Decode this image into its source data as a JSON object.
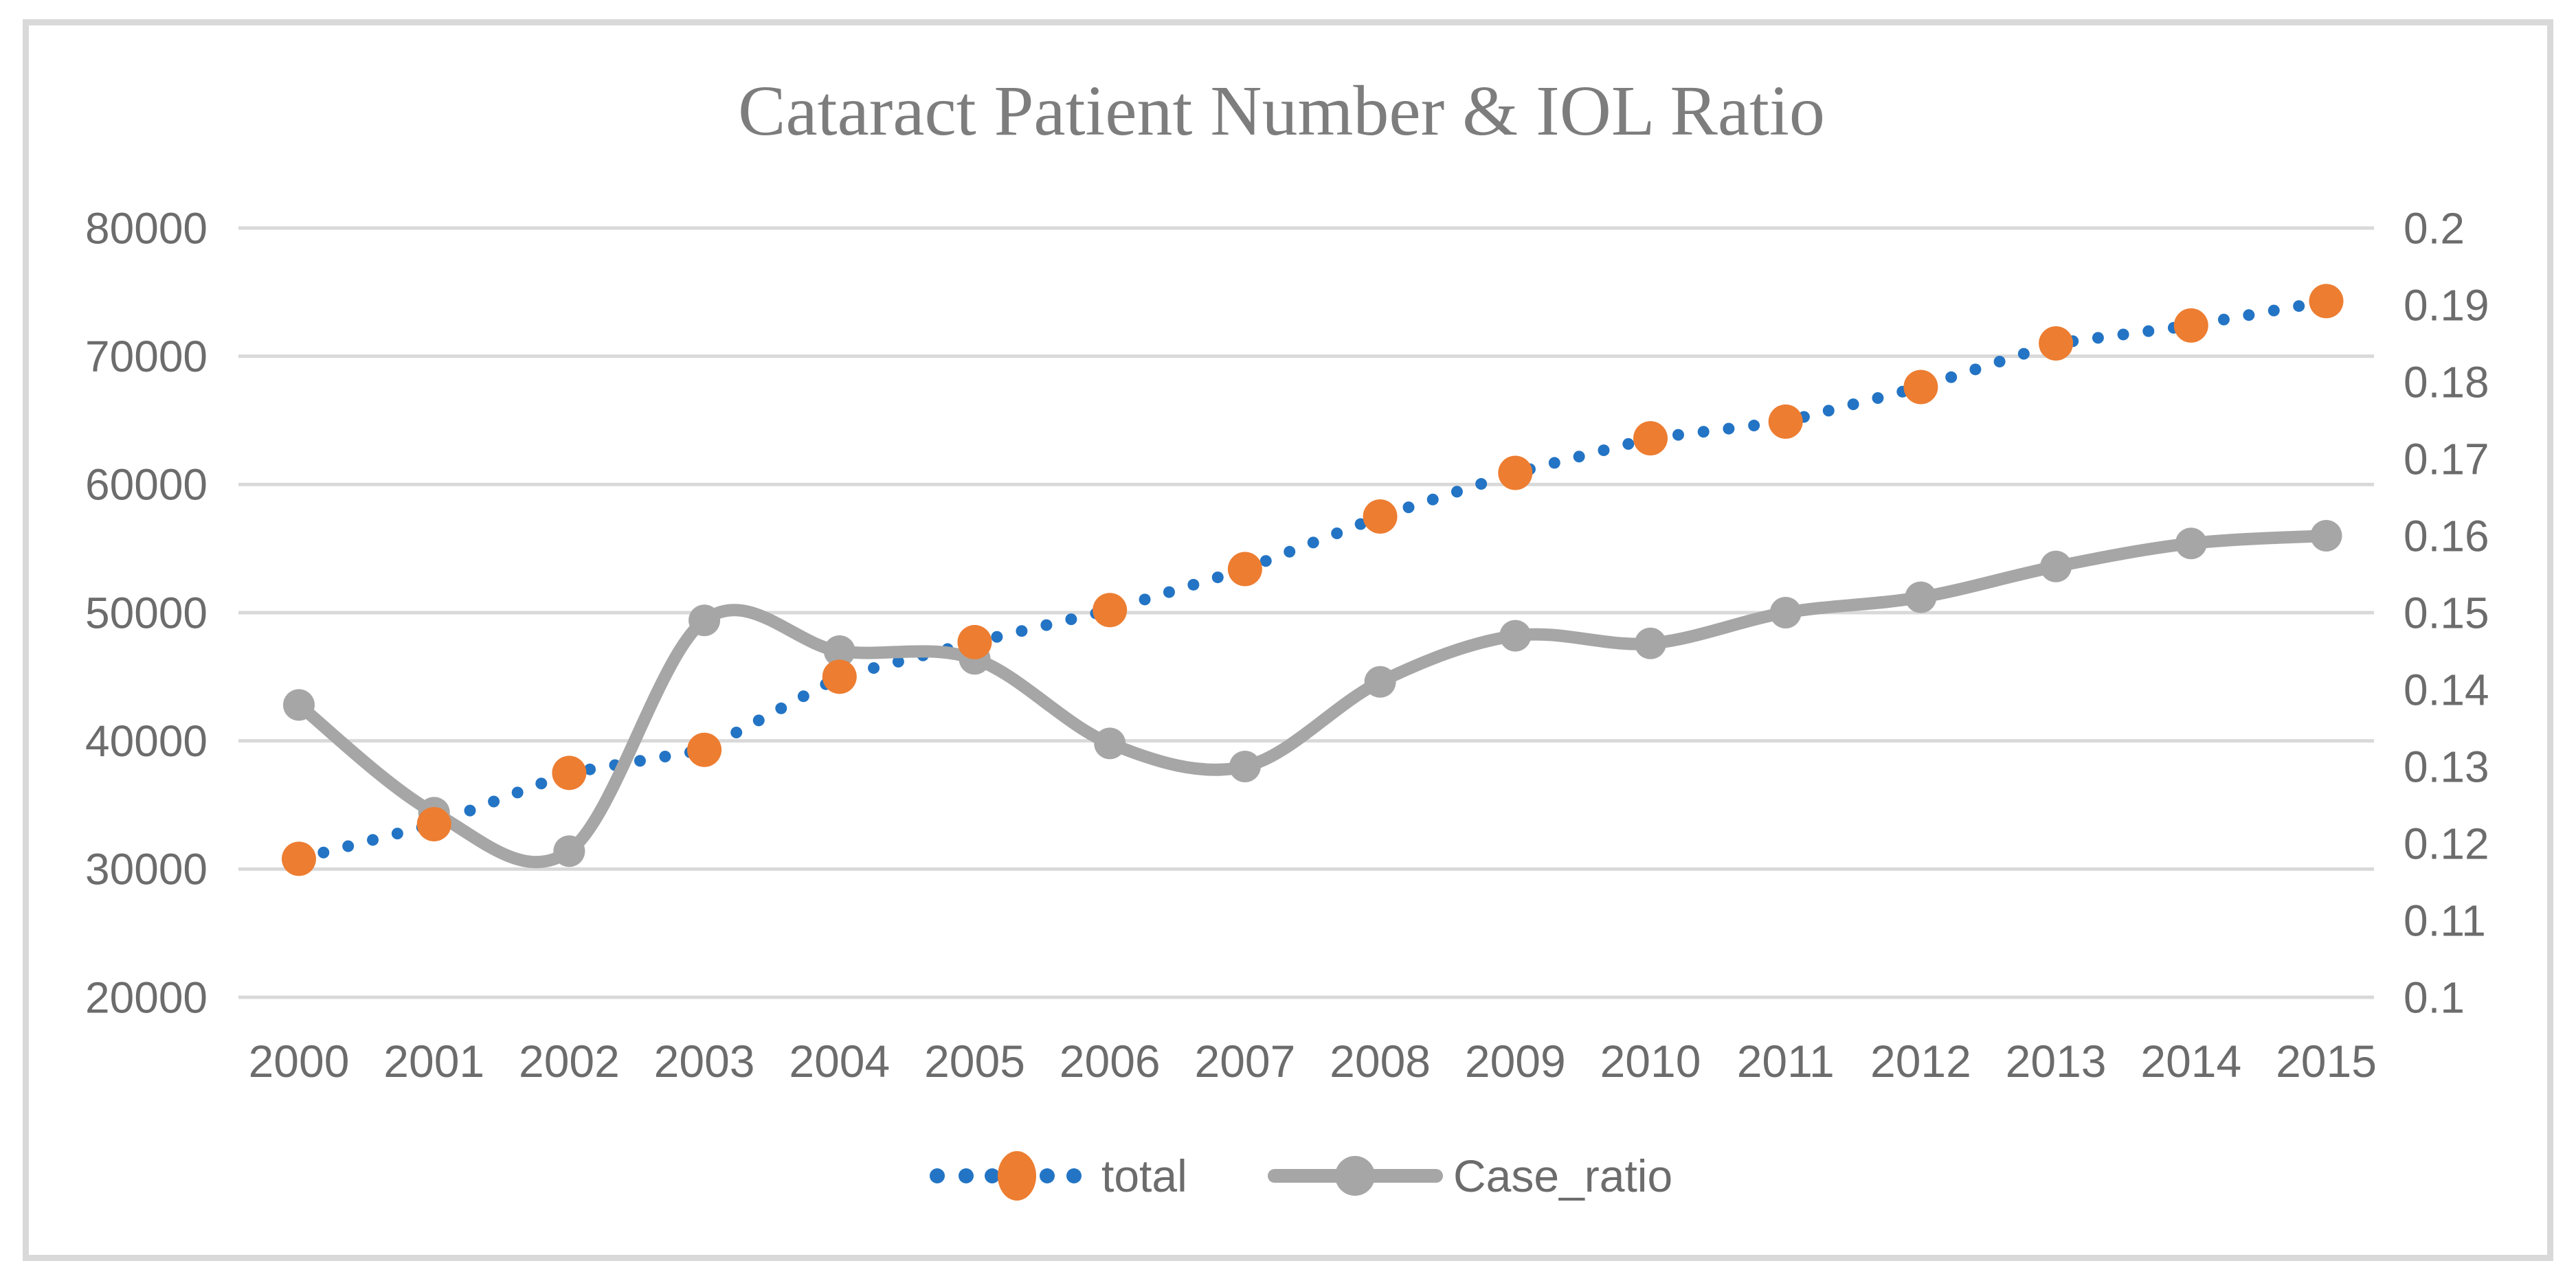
{
  "figure": {
    "title": "Cataract Patient Number & IOL Ratio"
  },
  "chart_data": {
    "type": "line",
    "title": "Cataract Patient Number & IOL Ratio",
    "categories": [
      2000,
      2001,
      2002,
      2003,
      2004,
      2005,
      2006,
      2007,
      2008,
      2009,
      2010,
      2011,
      2012,
      2013,
      2014,
      2015
    ],
    "series": [
      {
        "name": "total",
        "axis": "left",
        "line_style": "dotted",
        "line_color": "#2374C4",
        "marker": "circle",
        "marker_color": "#ED7D31",
        "values": [
          30800,
          33500,
          37500,
          39300,
          45000,
          47700,
          50200,
          53400,
          57500,
          60900,
          63600,
          64900,
          67600,
          71000,
          72400,
          74300
        ]
      },
      {
        "name": "Case_ratio",
        "axis": "right",
        "line_style": "smooth",
        "line_color": "#A6A6A6",
        "marker": "circle",
        "marker_color": "#A6A6A6",
        "values": [
          0.138,
          0.124,
          0.119,
          0.149,
          0.145,
          0.144,
          0.133,
          0.13,
          0.141,
          0.147,
          0.146,
          0.15,
          0.152,
          0.156,
          0.159,
          0.16
        ]
      }
    ],
    "left_axis": {
      "min": 20000,
      "max": 80000,
      "step": 10000,
      "tick_labels": [
        "80000",
        "70000",
        "60000",
        "50000",
        "40000",
        "30000",
        "20000"
      ],
      "tick_values": [
        80000,
        70000,
        60000,
        50000,
        40000,
        30000,
        20000
      ]
    },
    "right_axis": {
      "min": 0.1,
      "max": 0.2,
      "step": 0.01,
      "tick_labels": [
        "0.2",
        "0.19",
        "0.18",
        "0.17",
        "0.16",
        "0.15",
        "0.14",
        "0.13",
        "0.12",
        "0.11",
        "0.1"
      ],
      "tick_values": [
        0.2,
        0.19,
        0.18,
        0.17,
        0.16,
        0.15,
        0.14,
        0.13,
        0.12,
        0.11,
        0.1
      ]
    },
    "grid": true,
    "gridline_color": "#D9D9D9",
    "legend_position": "bottom"
  },
  "legend": {
    "items": [
      {
        "label": "total"
      },
      {
        "label": "Case_ratio"
      }
    ]
  },
  "colors": {
    "total_line": "#2374C4",
    "total_marker": "#ED7D31",
    "case_ratio": "#A6A6A6",
    "gridline": "#D9D9D9",
    "frame_border": "#D9D9D9",
    "axis_text": "#6C6C6C",
    "title_text": "#7D7D7D"
  }
}
